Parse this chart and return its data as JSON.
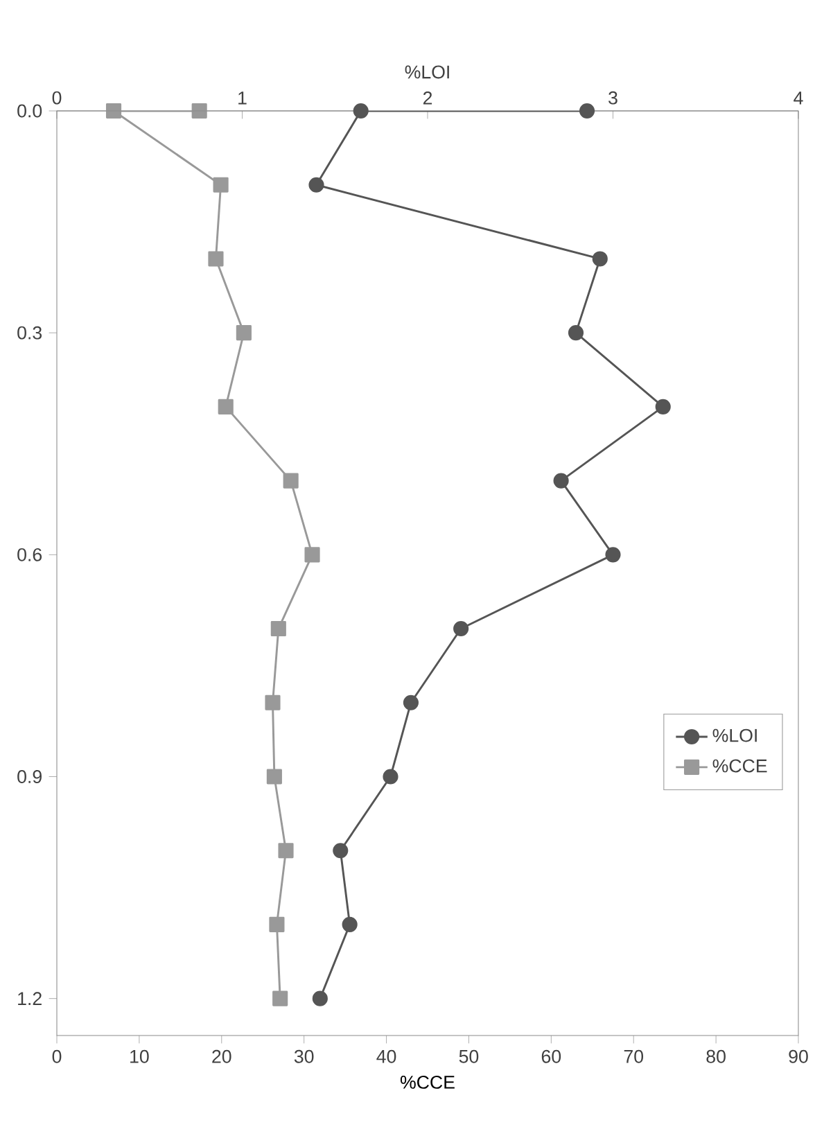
{
  "chart_data": {
    "type": "line",
    "xlabel": "%CCE",
    "x2label": "%LOI",
    "xlim": [
      0,
      90
    ],
    "xticks": [
      0,
      10,
      20,
      30,
      40,
      50,
      60,
      70,
      80,
      90
    ],
    "x2lim": [
      0,
      4
    ],
    "x2ticks": [
      0,
      1,
      2,
      3,
      4
    ],
    "ylim": [
      1.25,
      0
    ],
    "yticks": [
      {
        "value": 0,
        "label": "0.0"
      },
      {
        "value": 0.3,
        "label": "0.3"
      },
      {
        "value": 0.6,
        "label": "0.6"
      },
      {
        "value": 0.9,
        "label": "0.9"
      },
      {
        "value": 1.2,
        "label": "1.2"
      }
    ],
    "legend": "right",
    "grid": false,
    "line_style": "solid",
    "series": [
      {
        "name": "%LOI",
        "color": "#555555",
        "marker": "circle",
        "axis": "x2",
        "x": [
          2.86,
          1.64,
          1.4,
          2.93,
          2.8,
          3.27,
          2.72,
          3.0,
          2.18,
          1.91,
          1.8,
          1.53,
          1.58,
          1.42
        ],
        "values": [
          0,
          0,
          0.1,
          0.2,
          0.3,
          0.4,
          0.5,
          0.6,
          0.7,
          0.8,
          0.9,
          1.0,
          1.1,
          1.2
        ]
      },
      {
        "name": "%CCE",
        "color": "#999999",
        "marker": "square",
        "x": [
          17.3,
          6.9,
          19.9,
          19.3,
          22.7,
          20.5,
          28.4,
          31.0,
          26.9,
          26.2,
          26.4,
          27.8,
          26.7,
          27.1
        ],
        "values": [
          0,
          0,
          0.1,
          0.2,
          0.3,
          0.4,
          0.5,
          0.6,
          0.7,
          0.8,
          0.9,
          1.0,
          1.1,
          1.2
        ]
      }
    ]
  }
}
